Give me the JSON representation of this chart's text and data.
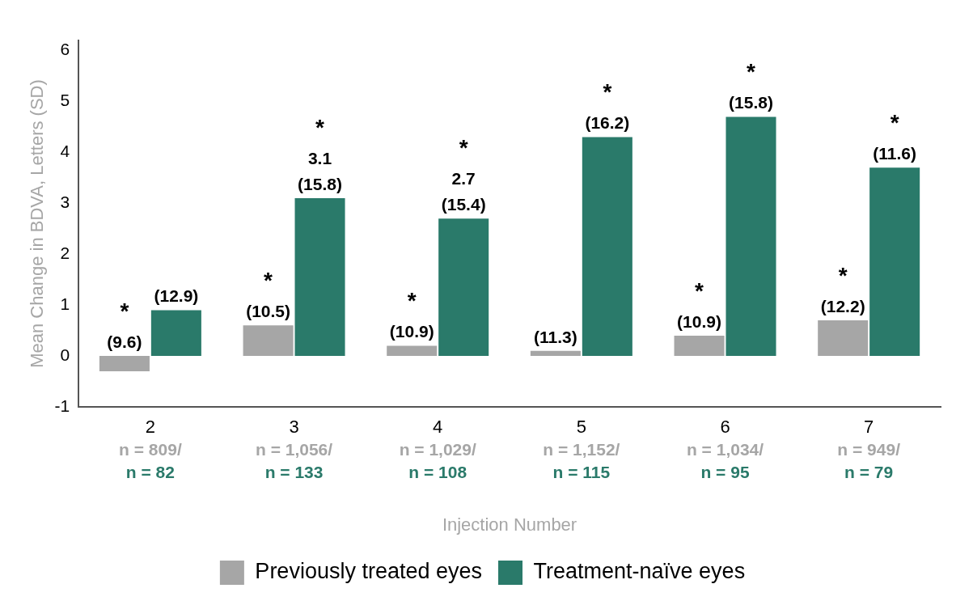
{
  "chart_data": {
    "type": "bar",
    "ylabel": "Mean Change in BDVA, Letters (SD)",
    "xlabel": "Injection Number",
    "categories": [
      "2\nn = 809/\nn = 82",
      "3\nn = 1,056/\nn = 133",
      "4\nn = 1,029/\nn = 108",
      "5\nn = 1,152/\nn = 115",
      "6\nn = 1,034/\nn = 95",
      "7\nn = 949/\nn = 79"
    ],
    "series": [
      {
        "name": "Previously treated eyes",
        "color": "#a6a6a6",
        "values": [
          -0.3,
          0.6,
          0.2,
          0.1,
          0.4,
          0.7
        ]
      },
      {
        "name": "Treatment-naïve eyes",
        "color": "#2a7a6a",
        "values": [
          0.9,
          3.1,
          2.7,
          4.3,
          4.7,
          3.7
        ],
        "value_labels": [
          null,
          "3.1",
          "2.7",
          null,
          null,
          null
        ]
      }
    ],
    "annotations": [
      {
        "text": "(9.6)",
        "x": "2\nn = 809/\nn = 82",
        "y": -0.3
      },
      {
        "text": "*",
        "x": "2\nn = 809/\nn = 82",
        "y": -0.3
      },
      {
        "text": "(12.9)",
        "x": "2\nn = 809/\nn = 82",
        "y": 0.9
      },
      {
        "text": "(10.5)",
        "x": "3\nn = 1,056/\nn = 133",
        "y": 0.6
      },
      {
        "text": "*",
        "x": "3\nn = 1,056/\nn = 133",
        "y": 0.6
      },
      {
        "text": "(15.8)",
        "x": "3\nn = 1,056/\nn = 133",
        "y": 3.1
      },
      {
        "text": "*",
        "x": "3\nn = 1,056/\nn = 133",
        "y": 3.1
      },
      {
        "text": "(10.9)",
        "x": "4\nn = 1,029/\nn = 108",
        "y": 0.2
      },
      {
        "text": "*",
        "x": "4\nn = 1,029/\nn = 108",
        "y": 0.2
      },
      {
        "text": "(15.4)",
        "x": "4\nn = 1,029/\nn = 108",
        "y": 2.7
      },
      {
        "text": "*",
        "x": "4\nn = 1,029/\nn = 108",
        "y": 2.7
      },
      {
        "text": "(11.3)",
        "x": "5\nn = 1,152/\nn = 115",
        "y": 0.1
      },
      {
        "text": "(16.2)",
        "x": "5\nn = 1,152/\nn = 115",
        "y": 4.3
      },
      {
        "text": "*",
        "x": "5\nn = 1,152/\nn = 115",
        "y": 4.3
      },
      {
        "text": "(10.9)",
        "x": "6\nn = 1,034/\nn = 95",
        "y": 0.4
      },
      {
        "text": "*",
        "x": "6\nn = 1,034/\nn = 95",
        "y": 0.4
      },
      {
        "text": "(15.8)",
        "x": "6\nn = 1,034/\nn = 95",
        "y": 4.7
      },
      {
        "text": "*",
        "x": "6\nn = 1,034/\nn = 95",
        "y": 4.7
      },
      {
        "text": "(12.2)",
        "x": "7\nn = 949/\nn = 79",
        "y": 0.7
      },
      {
        "text": "*",
        "x": "7\nn = 949/\nn = 79",
        "y": 0.7
      },
      {
        "text": "(11.6)",
        "x": "7\nn = 949/\nn = 79",
        "y": 3.7
      },
      {
        "text": "*",
        "x": "7\nn = 949/\nn = 79",
        "y": 3.7
      }
    ],
    "ylim": [
      -1,
      6.2
    ],
    "yticks": [
      -1,
      0,
      1,
      2,
      3,
      4,
      5,
      6
    ],
    "grid": false,
    "legend": "bottom"
  }
}
